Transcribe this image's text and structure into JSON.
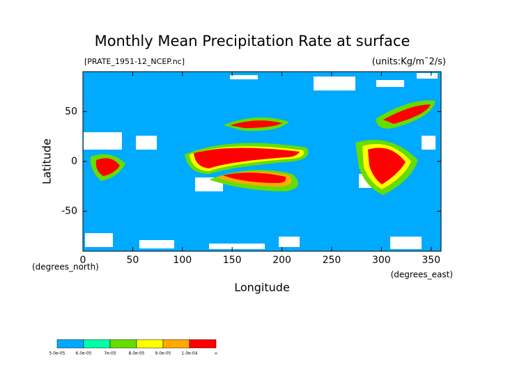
{
  "chart_data": {
    "type": "map",
    "title": "Monthly Mean Precipitation Rate at surface",
    "subtitle": "[PRATE_1951-12_NCEP.nc]",
    "units": "(units:Kg/m¯2/s)",
    "x_label": "Longitude",
    "y_label": "Latitude",
    "x_unit": "(degrees_east)",
    "y_unit": "(degrees_north)",
    "xlim": [
      0,
      360
    ],
    "xticks": [
      0,
      50,
      100,
      150,
      200,
      250,
      300,
      350
    ],
    "ylim": [
      -90,
      90
    ],
    "yticks": [
      -50,
      0,
      50
    ],
    "colorbar": {
      "labels": [
        "5.0e-05",
        "6.0e-05",
        "7e-05",
        "8.0e-05",
        "9.0e-05",
        "1.0e-04",
        "∞"
      ],
      "colors": [
        "#00aaff",
        "#00ffaa",
        "#66dd00",
        "#ffff00",
        "#ffaa00",
        "#ff0000"
      ]
    }
  }
}
